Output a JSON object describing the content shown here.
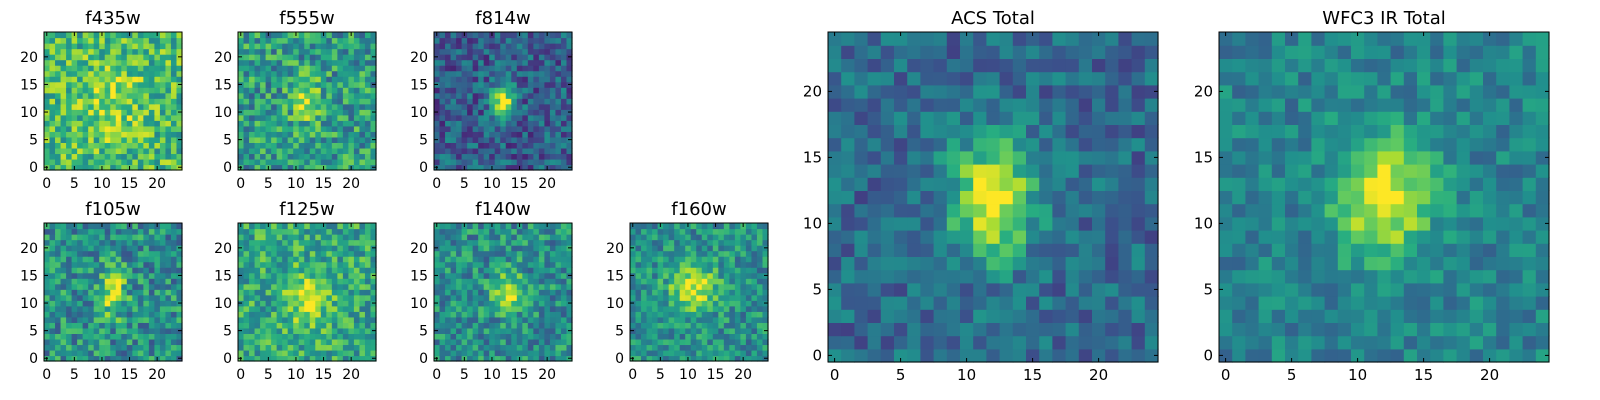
{
  "figure": {
    "background": "#ffffff",
    "colormap": "viridis"
  },
  "chart_data": [
    {
      "type": "heatmap",
      "title": "f435w",
      "grid_size": 25,
      "xlim": [
        0,
        24
      ],
      "ylim": [
        0,
        24
      ],
      "xticks": [
        0,
        5,
        10,
        15,
        20
      ],
      "yticks": [
        0,
        5,
        10,
        15,
        20
      ],
      "source": {
        "center": [
          12,
          12
        ],
        "sigma": [
          3.5,
          4.5
        ],
        "peak": 0.2,
        "base": 0.68,
        "noise": 0.24
      }
    },
    {
      "type": "heatmap",
      "title": "f555w",
      "grid_size": 25,
      "xlim": [
        0,
        24
      ],
      "ylim": [
        0,
        24
      ],
      "xticks": [
        0,
        5,
        10,
        15,
        20
      ],
      "yticks": [
        0,
        5,
        10,
        15,
        20
      ],
      "source": {
        "center": [
          12,
          12
        ],
        "sigma": [
          1.8,
          2.6
        ],
        "peak": 0.35,
        "base": 0.55,
        "noise": 0.25
      }
    },
    {
      "type": "heatmap",
      "title": "f814w",
      "grid_size": 25,
      "xlim": [
        0,
        24
      ],
      "ylim": [
        0,
        24
      ],
      "xticks": [
        0,
        5,
        10,
        15,
        20
      ],
      "yticks": [
        0,
        5,
        10,
        15,
        20
      ],
      "source": {
        "center": [
          12,
          12
        ],
        "sigma": [
          1.4,
          2.3
        ],
        "peak": 0.68,
        "base": 0.3,
        "noise": 0.2
      }
    },
    {
      "type": "heatmap",
      "title": "f105w",
      "grid_size": 25,
      "xlim": [
        0,
        24
      ],
      "ylim": [
        0,
        24
      ],
      "xticks": [
        0,
        5,
        10,
        15,
        20
      ],
      "yticks": [
        0,
        5,
        10,
        15,
        20
      ],
      "source": {
        "center": [
          12,
          12
        ],
        "sigma": [
          1.6,
          3.0
        ],
        "peak": 0.45,
        "base": 0.5,
        "noise": 0.24
      }
    },
    {
      "type": "heatmap",
      "title": "f125w",
      "grid_size": 25,
      "xlim": [
        0,
        24
      ],
      "ylim": [
        0,
        24
      ],
      "xticks": [
        0,
        5,
        10,
        15,
        20
      ],
      "yticks": [
        0,
        5,
        10,
        15,
        20
      ],
      "source": {
        "center": [
          12,
          11
        ],
        "sigma": [
          3.0,
          3.5
        ],
        "peak": 0.3,
        "base": 0.6,
        "noise": 0.22
      }
    },
    {
      "type": "heatmap",
      "title": "f140w",
      "grid_size": 25,
      "xlim": [
        0,
        24
      ],
      "ylim": [
        0,
        24
      ],
      "xticks": [
        0,
        5,
        10,
        15,
        20
      ],
      "yticks": [
        0,
        5,
        10,
        15,
        20
      ],
      "source": {
        "center": [
          13,
          12
        ],
        "sigma": [
          1.8,
          2.4
        ],
        "peak": 0.45,
        "base": 0.5,
        "noise": 0.22
      }
    },
    {
      "type": "heatmap",
      "title": "f160w",
      "grid_size": 25,
      "xlim": [
        0,
        24
      ],
      "ylim": [
        0,
        24
      ],
      "xticks": [
        0,
        5,
        10,
        15,
        20
      ],
      "yticks": [
        0,
        5,
        10,
        15,
        20
      ],
      "source": {
        "center": [
          11,
          13
        ],
        "sigma": [
          3.0,
          3.0
        ],
        "peak": 0.45,
        "base": 0.5,
        "noise": 0.2
      }
    },
    {
      "type": "heatmap",
      "title": "ACS Total",
      "grid_size": 25,
      "xlim": [
        0,
        24
      ],
      "ylim": [
        0,
        24
      ],
      "xticks": [
        0,
        5,
        10,
        15,
        20
      ],
      "yticks": [
        0,
        5,
        10,
        15,
        20
      ],
      "source": {
        "center": [
          12,
          12
        ],
        "sigma": [
          2.2,
          3.2
        ],
        "peak": 0.65,
        "base": 0.35,
        "noise": 0.16
      }
    },
    {
      "type": "heatmap",
      "title": "WFC3 IR Total",
      "grid_size": 25,
      "xlim": [
        0,
        24
      ],
      "ylim": [
        0,
        24
      ],
      "xticks": [
        0,
        5,
        10,
        15,
        20
      ],
      "yticks": [
        0,
        5,
        10,
        15,
        20
      ],
      "source": {
        "center": [
          12,
          12
        ],
        "sigma": [
          2.5,
          3.2
        ],
        "peak": 0.55,
        "base": 0.45,
        "noise": 0.14
      }
    }
  ]
}
